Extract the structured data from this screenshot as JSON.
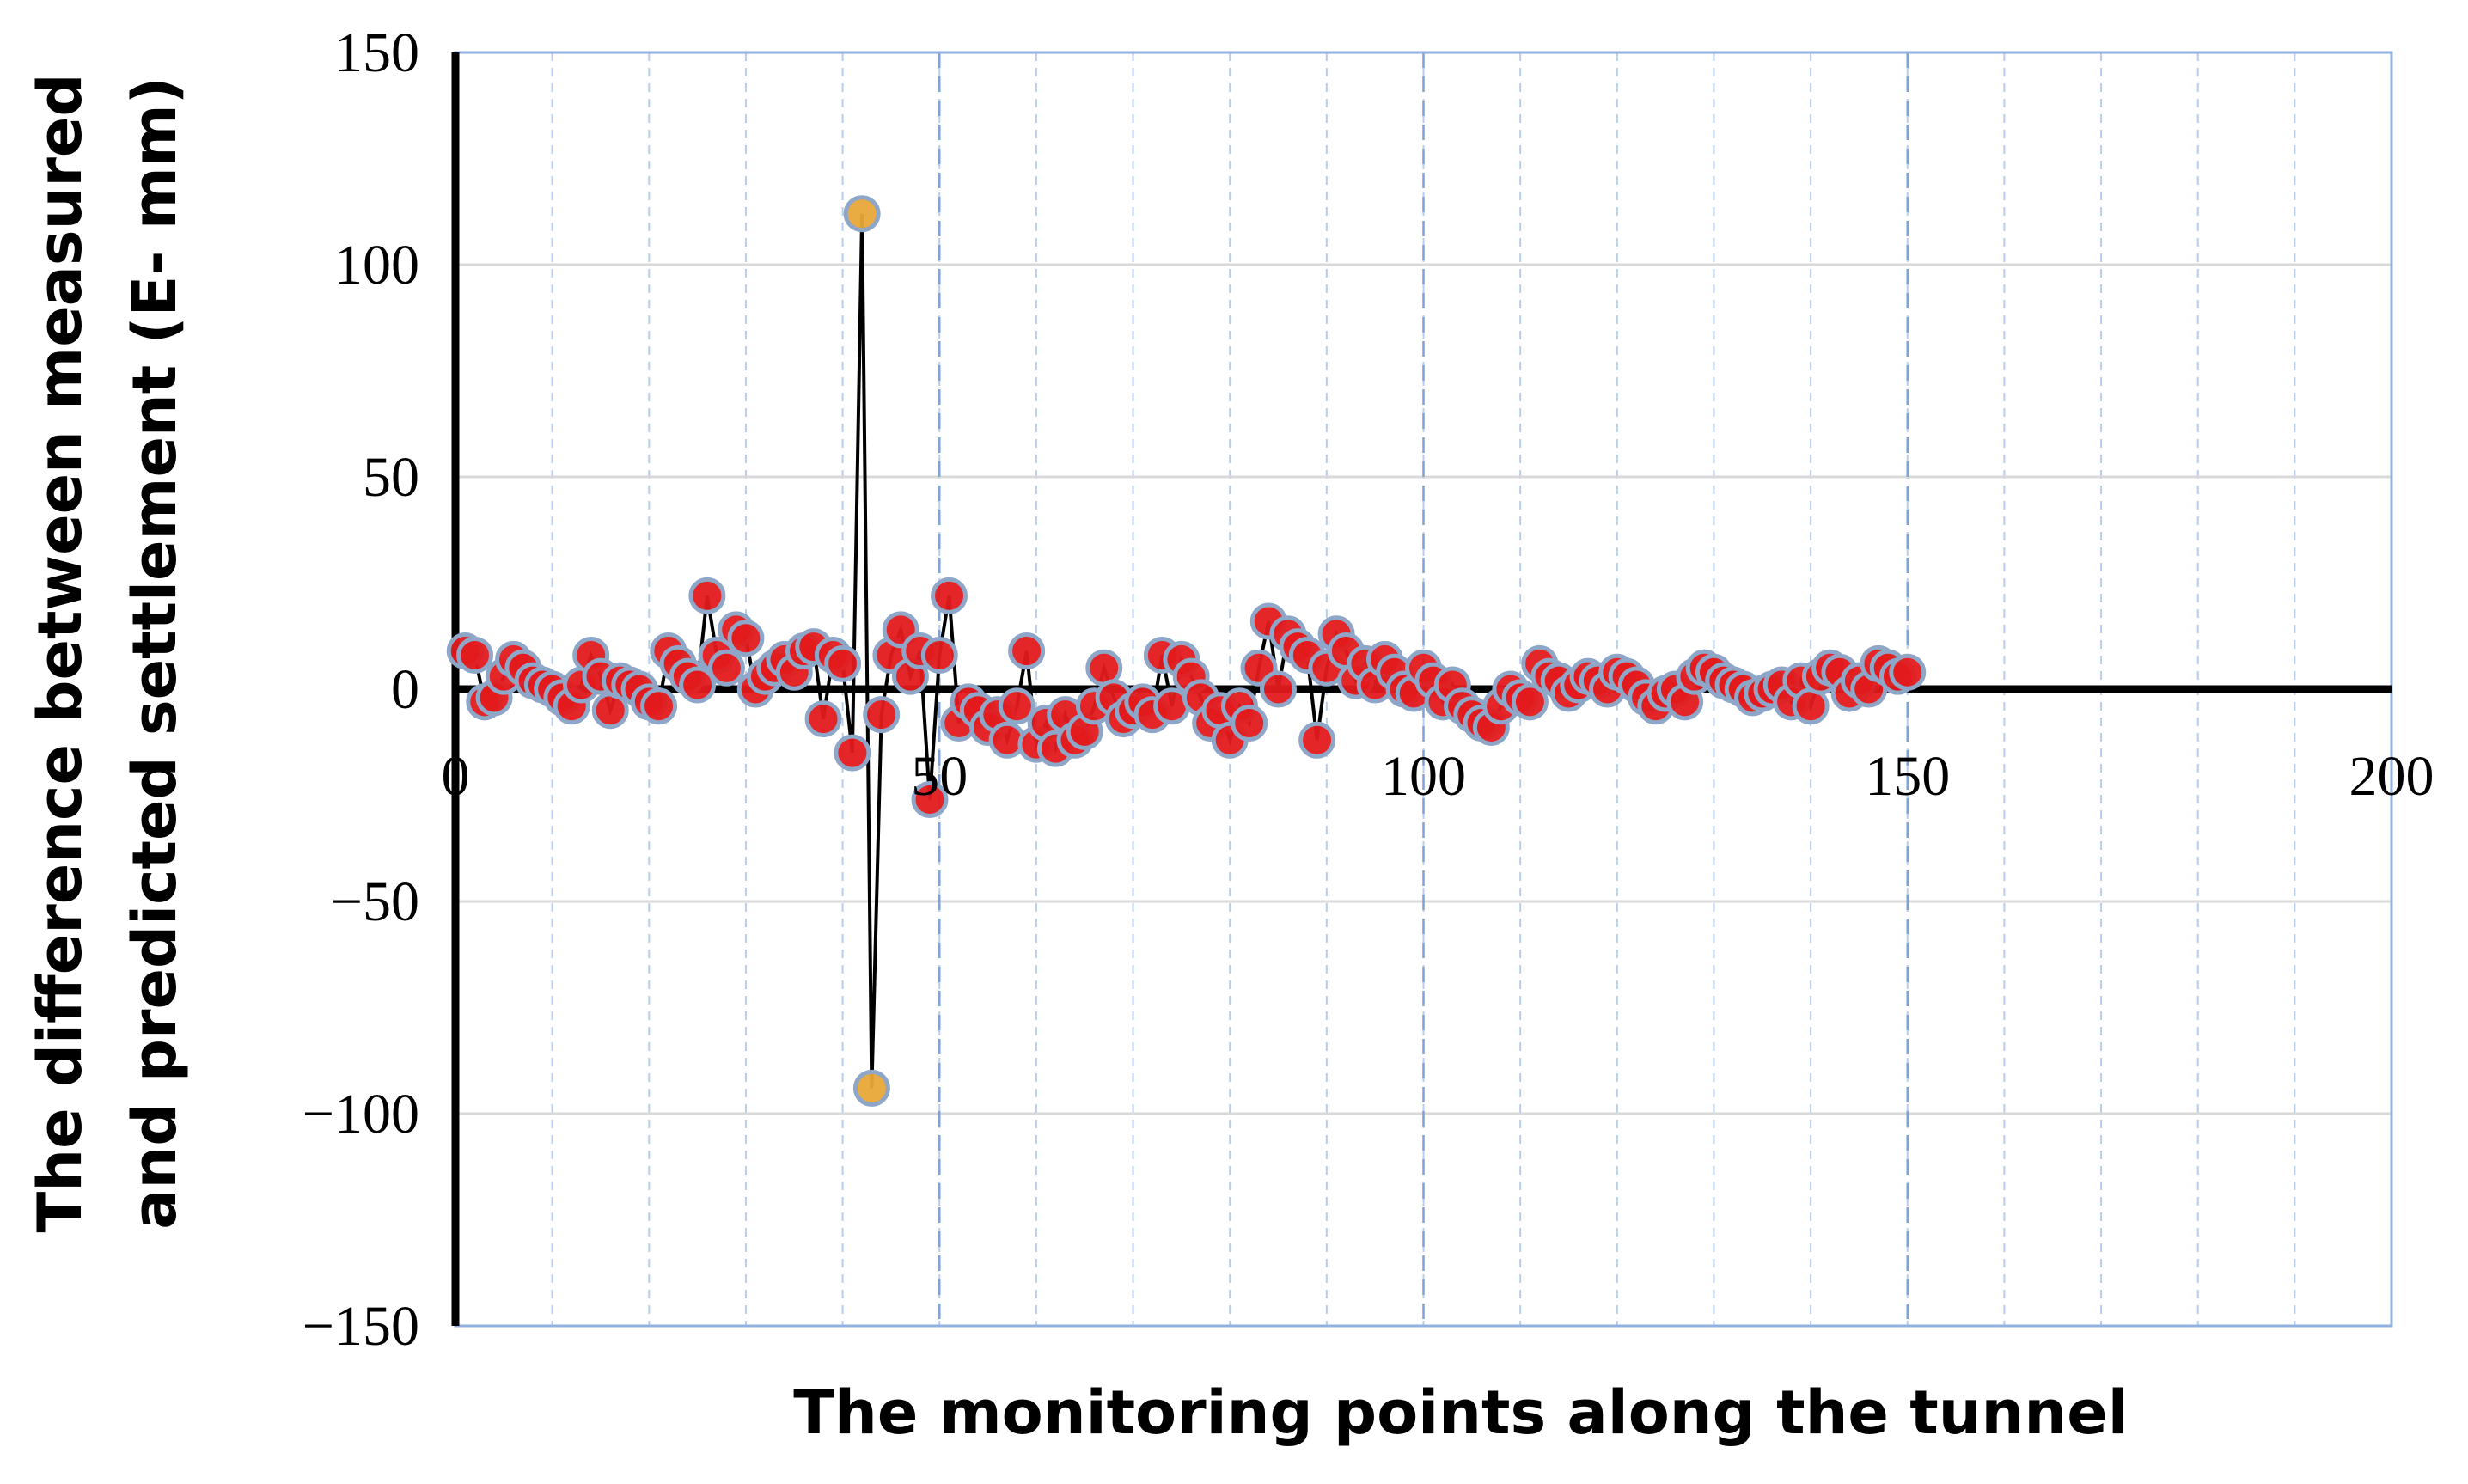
{
  "chart_data": {
    "type": "scatter_line",
    "x_label": "The monitoring points along the tunnel",
    "y_label": [
      "The difference between measured",
      "and predicted settlement (E- mm)"
    ],
    "xlim": [
      0,
      200
    ],
    "xticks": [
      0,
      50,
      100,
      150,
      200
    ],
    "x_minor_step": 10,
    "ylim": [
      -150,
      150
    ],
    "yticks": [
      {
        "value": -150,
        "label": "−150"
      },
      {
        "value": -100,
        "label": "−100"
      },
      {
        "value": -50,
        "label": "−50"
      },
      0,
      50,
      100,
      150
    ],
    "grid": true,
    "line_color": "#000000",
    "x": [
      1,
      2,
      3,
      4,
      5,
      6,
      7,
      8,
      9,
      10,
      11,
      12,
      13,
      14,
      15,
      16,
      17,
      18,
      19,
      20,
      21,
      22,
      23,
      24,
      25,
      26,
      27,
      28,
      29,
      30,
      31,
      32,
      33,
      34,
      35,
      36,
      37,
      38,
      39,
      40,
      41,
      42,
      43,
      44,
      45,
      46,
      47,
      48,
      49,
      50,
      51,
      52,
      53,
      54,
      55,
      56,
      57,
      58,
      59,
      60,
      61,
      62,
      63,
      64,
      65,
      66,
      67,
      68,
      69,
      70,
      71,
      72,
      73,
      74,
      75,
      76,
      77,
      78,
      79,
      80,
      81,
      82,
      83,
      84,
      85,
      86,
      87,
      88,
      89,
      90,
      91,
      92,
      93,
      94,
      95,
      96,
      97,
      98,
      99,
      100,
      101,
      102,
      103,
      104,
      105,
      106,
      107,
      108,
      109,
      110,
      111,
      112,
      113,
      114,
      115,
      116,
      117,
      118,
      119,
      120,
      121,
      122,
      123,
      124,
      125,
      126,
      127,
      128,
      129,
      130,
      131,
      132,
      133,
      134,
      135,
      136,
      137,
      138,
      139,
      140,
      141,
      142,
      143,
      144,
      145,
      146,
      147,
      148,
      149,
      150
    ],
    "series": [
      {
        "color": "#e31a1c",
        "values": [
          9,
          8,
          -3,
          -2,
          3,
          7,
          5,
          2,
          1,
          0,
          -2,
          -4,
          1,
          8,
          3,
          -5,
          2,
          1,
          0,
          -3,
          -4,
          9,
          6,
          3,
          1,
          22,
          8,
          5,
          14,
          12,
          0,
          3,
          5,
          7,
          4,
          9,
          10,
          -7,
          8,
          6,
          -15,
          112,
          -94,
          -6,
          8,
          14,
          3,
          9,
          -26,
          8,
          22,
          -8,
          -3,
          -5,
          -9,
          -6,
          -12,
          -4,
          9,
          -13,
          -8,
          -14,
          -6,
          -12,
          -10,
          -4,
          5,
          -2,
          -7,
          -5,
          -3,
          -6,
          8,
          -4,
          7,
          3,
          -2,
          -8,
          -5,
          -12,
          -4,
          -8,
          5,
          16,
          0,
          13,
          10,
          8,
          -12,
          5,
          13,
          9,
          2,
          6,
          1,
          7,
          4,
          0,
          -1,
          5,
          2,
          -3,
          1,
          -4,
          -6,
          -8,
          -9,
          -4,
          0,
          -2,
          -3,
          6,
          3,
          2,
          -1,
          1,
          3,
          2,
          0,
          4,
          3,
          1,
          -2,
          -4,
          -1,
          0,
          -3,
          3,
          5,
          4,
          2,
          1,
          0,
          -2,
          -1,
          0,
          1,
          -3,
          2,
          -4,
          3,
          5,
          4,
          -1,
          2,
          0,
          6,
          5,
          3,
          4
        ],
        "point_colors": [
          "#e31a1c",
          "#e31a1c",
          "#e31a1c",
          "#e31a1c",
          "#e31a1c",
          "#e31a1c",
          "#e31a1c",
          "#e31a1c",
          "#e31a1c",
          "#e31a1c",
          "#e31a1c",
          "#e31a1c",
          "#e31a1c",
          "#e31a1c",
          "#e31a1c",
          "#e31a1c",
          "#e31a1c",
          "#e31a1c",
          "#e31a1c",
          "#e31a1c",
          "#e31a1c",
          "#e31a1c",
          "#e31a1c",
          "#e31a1c",
          "#e31a1c",
          "#e31a1c",
          "#e31a1c",
          "#e31a1c",
          "#e31a1c",
          "#e31a1c",
          "#e31a1c",
          "#e31a1c",
          "#e31a1c",
          "#e31a1c",
          "#e31a1c",
          "#e31a1c",
          "#e31a1c",
          "#e31a1c",
          "#e31a1c",
          "#e31a1c",
          "#e31a1c",
          "#e8a838",
          "#e8a838",
          "#e31a1c",
          "#e31a1c",
          "#e31a1c",
          "#e31a1c",
          "#e31a1c",
          "#e31a1c",
          "#e31a1c",
          "#e31a1c",
          "#e31a1c",
          "#e31a1c",
          "#e31a1c",
          "#e31a1c",
          "#e31a1c",
          "#e31a1c",
          "#e31a1c",
          "#e31a1c",
          "#e31a1c",
          "#e31a1c",
          "#e31a1c",
          "#e31a1c",
          "#e31a1c",
          "#e31a1c",
          "#e31a1c",
          "#e31a1c",
          "#e31a1c",
          "#e31a1c",
          "#e31a1c",
          "#e31a1c",
          "#e31a1c",
          "#e31a1c",
          "#e31a1c",
          "#e31a1c",
          "#e31a1c",
          "#e31a1c",
          "#e31a1c",
          "#e31a1c",
          "#e31a1c",
          "#e31a1c",
          "#e31a1c",
          "#e31a1c",
          "#e31a1c",
          "#e31a1c",
          "#e31a1c",
          "#e31a1c",
          "#e31a1c",
          "#e31a1c",
          "#e31a1c",
          "#e31a1c",
          "#e31a1c",
          "#e31a1c",
          "#e31a1c",
          "#e31a1c",
          "#e31a1c",
          "#e31a1c",
          "#e31a1c",
          "#e31a1c",
          "#e31a1c",
          "#e31a1c",
          "#e31a1c",
          "#e31a1c",
          "#e31a1c",
          "#e31a1c",
          "#e31a1c",
          "#e31a1c",
          "#e31a1c",
          "#e31a1c",
          "#e31a1c",
          "#e31a1c",
          "#e31a1c",
          "#e31a1c",
          "#e31a1c",
          "#e31a1c",
          "#e31a1c",
          "#e31a1c",
          "#e31a1c",
          "#e31a1c",
          "#e31a1c",
          "#e31a1c",
          "#e31a1c",
          "#e31a1c",
          "#e31a1c",
          "#e31a1c",
          "#e31a1c",
          "#e31a1c",
          "#e31a1c",
          "#e31a1c",
          "#e31a1c",
          "#e31a1c",
          "#e31a1c",
          "#e31a1c",
          "#e31a1c",
          "#e31a1c",
          "#e31a1c",
          "#e31a1c",
          "#e31a1c",
          "#e31a1c",
          "#e31a1c",
          "#e31a1c",
          "#e31a1c",
          "#e31a1c",
          "#e31a1c",
          "#e31a1c",
          "#e31a1c",
          "#e31a1c",
          "#e31a1c",
          "#e31a1c",
          "#e31a1c"
        ]
      }
    ]
  }
}
